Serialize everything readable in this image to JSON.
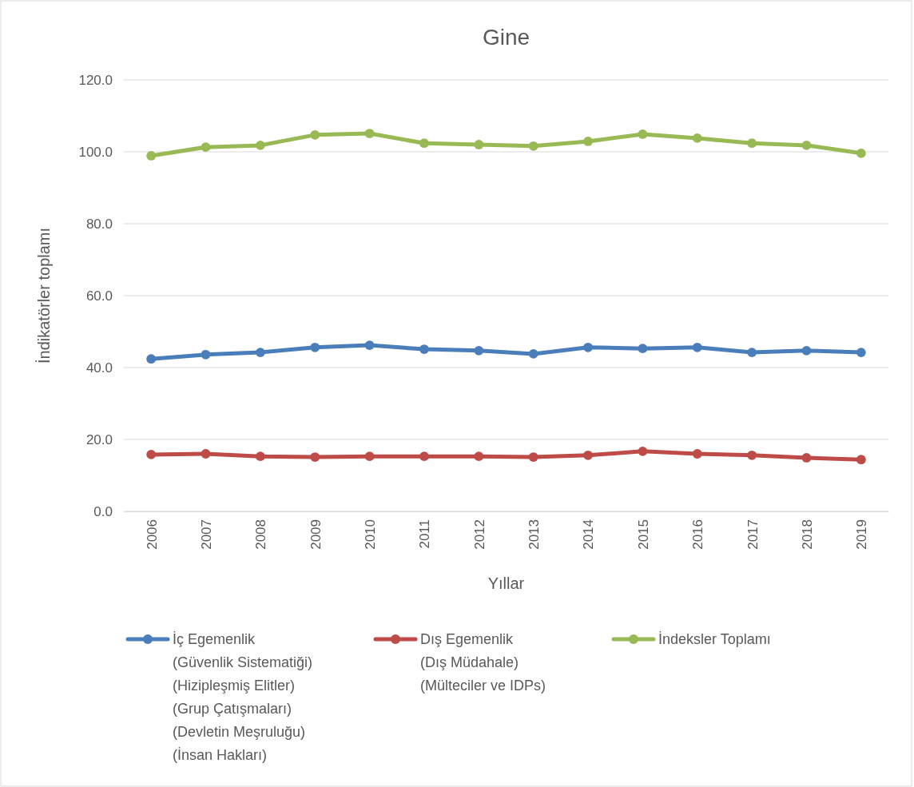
{
  "chart_data": {
    "type": "line",
    "title": "Gine",
    "xlabel": "Yıllar",
    "ylabel": "İndikatörler toplamı",
    "categories": [
      "2006",
      "2007",
      "2008",
      "2009",
      "2010",
      "2011",
      "2012",
      "2013",
      "2014",
      "2015",
      "2016",
      "2017",
      "2018",
      "2019"
    ],
    "series": [
      {
        "name": "İç Egemenlik\n(Güvenlik Sistematiği)\n(Hizipleşmiş Elitler)\n(Grup Çatışmaları)\n(Devletin Meşruluğu)\n(İnsan Hakları)",
        "color": "#4a7ebb",
        "values": [
          42.4,
          43.6,
          44.2,
          45.6,
          46.2,
          45.1,
          44.7,
          43.8,
          45.6,
          45.3,
          45.6,
          44.2,
          44.7,
          44.2
        ]
      },
      {
        "name": "Dış Egemenlik\n(Dış Müdahale)\n(Mülteciler ve IDPs)",
        "color": "#be4b48",
        "values": [
          15.8,
          16.0,
          15.3,
          15.1,
          15.3,
          15.3,
          15.3,
          15.1,
          15.6,
          16.7,
          16.0,
          15.6,
          14.9,
          14.4
        ]
      },
      {
        "name": "İndeksler Toplamı",
        "color": "#98b954",
        "values": [
          98.9,
          101.3,
          101.8,
          104.7,
          105.1,
          102.4,
          102.0,
          101.6,
          102.9,
          104.9,
          103.8,
          102.4,
          101.8,
          99.6
        ]
      }
    ],
    "ylim": [
      0,
      120
    ],
    "yticks": [
      {
        "value": 0,
        "label": "0.0"
      },
      {
        "value": 20,
        "label": "20.0"
      },
      {
        "value": 40,
        "label": "40.0"
      },
      {
        "value": 60,
        "label": "60.0"
      },
      {
        "value": 80,
        "label": "80.0"
      },
      {
        "value": 100,
        "label": "100.0"
      },
      {
        "value": 120,
        "label": "120.0"
      }
    ],
    "grid": "y",
    "legend": "bottom",
    "marker": "circle",
    "line_style": "solid"
  }
}
